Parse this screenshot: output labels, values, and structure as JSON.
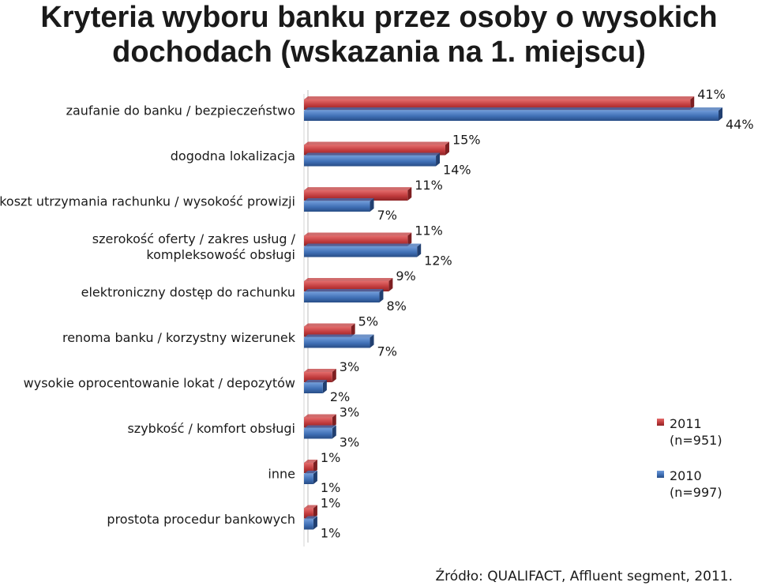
{
  "chart_data": {
    "type": "bar",
    "orientation": "horizontal",
    "title_lines": [
      "Kryteria wyboru banku przez osoby o wysokich",
      "dochodach (wskazania na 1. miejscu)"
    ],
    "categories": [
      [
        "zaufanie do banku / bezpieczeństwo"
      ],
      [
        "dogodna lokalizacja"
      ],
      [
        "koszt utrzymania rachunku / wysokość prowizji"
      ],
      [
        "szerokość oferty / zakres usług /",
        "kompleksowość obsługi"
      ],
      [
        "elektroniczny dostęp do rachunku"
      ],
      [
        "renoma banku / korzystny wizerunek"
      ],
      [
        "wysokie oprocentowanie lokat / depozytów"
      ],
      [
        "szybkość / komfort obsługi"
      ],
      [
        "inne"
      ],
      [
        "prostota procedur bankowych"
      ]
    ],
    "series": [
      {
        "name": "2011 (n=951)",
        "legend_lines": [
          "2011",
          "(n=951)"
        ],
        "color": "#c0393b",
        "values": [
          41,
          15,
          11,
          11,
          9,
          5,
          3,
          3,
          1,
          1
        ],
        "labels": [
          "41%",
          "15%",
          "11%",
          "11%",
          "9%",
          "5%",
          "3%",
          "3%",
          "1%",
          "1%"
        ]
      },
      {
        "name": "2010 (n=997)",
        "legend_lines": [
          "2010",
          "(n=997)"
        ],
        "color": "#3f6fb5",
        "values": [
          44,
          14,
          7,
          12,
          8,
          7,
          2,
          3,
          1,
          1
        ],
        "labels": [
          "44%",
          "14%",
          "7%",
          "12%",
          "8%",
          "7%",
          "2%",
          "3%",
          "1%",
          "1%"
        ]
      }
    ],
    "xlim": [
      0,
      44
    ],
    "grid": false,
    "legend_position": "right"
  },
  "source": "Źródło: QUALIFACT, Affluent segment, 2011."
}
